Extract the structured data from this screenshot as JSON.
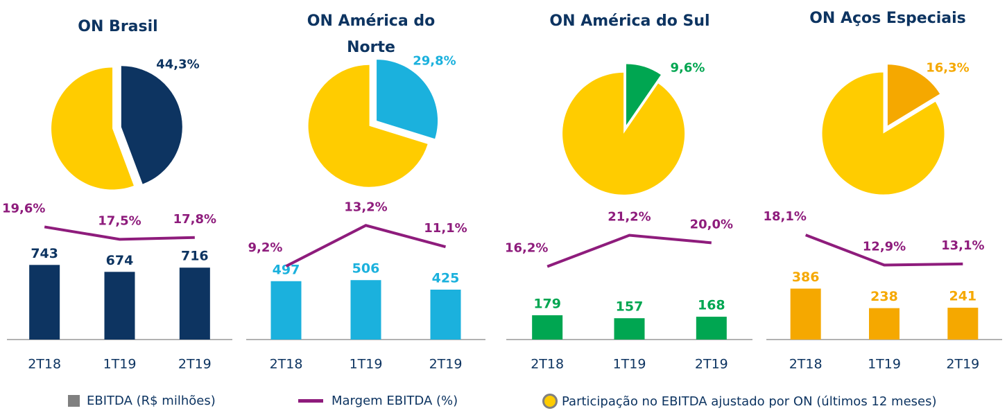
{
  "chart_data": [
    {
      "type": "pie",
      "title": "ON Brasil",
      "rest_color": "#ffcc00",
      "series": [
        {
          "name": "Participação no EBITDA ajustado por ON (últimos 12 meses)",
          "color": "#0d3461",
          "values": [
            44.3
          ],
          "value_labels": [
            "44,3%"
          ]
        }
      ]
    },
    {
      "type": "bar_line",
      "categories": [
        "2T18",
        "1T19",
        "2T19"
      ],
      "ylim": [
        0,
        1380
      ],
      "y2lim": [
        0.5,
        24
      ],
      "series": [
        {
          "name": "EBITDA (R$ milhões)",
          "color": "#0d3461",
          "values": [
            743,
            674,
            716
          ]
        },
        {
          "name": "Margem EBITDA (%)",
          "color": "#8e1c7c",
          "axis": "y2",
          "values": [
            19.6,
            17.5,
            17.8
          ],
          "value_labels": [
            "19,6%",
            "17,5%",
            "17,8%"
          ]
        }
      ]
    },
    {
      "type": "pie",
      "title": "ON América do Norte",
      "rest_color": "#ffcc00",
      "series": [
        {
          "name": "Participação no EBITDA ajustado por ON (últimos 12 meses)",
          "color": "#1bb1dd",
          "values": [
            29.8
          ],
          "value_labels": [
            "29,8%"
          ]
        }
      ]
    },
    {
      "type": "bar_line",
      "categories": [
        "2T18",
        "1T19",
        "2T19"
      ],
      "ylim": [
        0,
        1180
      ],
      "y2lim": [
        2,
        15.6
      ],
      "series": [
        {
          "name": "EBITDA (R$ milhões)",
          "color": "#1bb1dd",
          "values": [
            497,
            506,
            425
          ]
        },
        {
          "name": "Margem EBITDA (%)",
          "color": "#8e1c7c",
          "axis": "y2",
          "values": [
            9.2,
            13.2,
            11.1
          ],
          "value_labels": [
            "9,2%",
            "13,2%",
            "11,1%"
          ]
        }
      ]
    },
    {
      "type": "pie",
      "title": "ON América do Sul",
      "rest_color": "#ffcc00",
      "series": [
        {
          "name": "Participação no EBITDA ajustado por ON (últimos 12 meses)",
          "color": "#00a651",
          "values": [
            9.6
          ],
          "value_labels": [
            "9,6%"
          ]
        }
      ]
    },
    {
      "type": "bar_line",
      "categories": [
        "2T18",
        "1T19",
        "2T19"
      ],
      "ylim": [
        0,
        1020
      ],
      "y2lim": [
        4.5,
        26.7
      ],
      "series": [
        {
          "name": "EBITDA (R$ milhões)",
          "color": "#00a651",
          "values": [
            179,
            157,
            168
          ]
        },
        {
          "name": "Margem EBITDA (%)",
          "color": "#8e1c7c",
          "axis": "y2",
          "values": [
            16.2,
            21.2,
            20.0
          ],
          "value_labels": [
            "16,2%",
            "21,2%",
            "20,0%"
          ]
        }
      ]
    },
    {
      "type": "pie",
      "title": "ON Aços Especiais",
      "rest_color": "#ffcc00",
      "series": [
        {
          "name": "Participação no EBITDA ajustado por ON (últimos 12 meses)",
          "color": "#f5a800",
          "values": [
            16.3
          ],
          "value_labels": [
            "16,3%"
          ]
        }
      ]
    },
    {
      "type": "bar_line",
      "categories": [
        "2T18",
        "1T19",
        "2T19"
      ],
      "ylim": [
        0,
        1050
      ],
      "y2lim": [
        0,
        24
      ],
      "series": [
        {
          "name": "EBITDA (R$ milhões)",
          "color": "#f5a800",
          "values": [
            386,
            238,
            241
          ]
        },
        {
          "name": "Margem EBITDA (%)",
          "color": "#8e1c7c",
          "axis": "y2",
          "values": [
            18.1,
            12.9,
            13.1
          ],
          "value_labels": [
            "18,1%",
            "12,9%",
            "13,1%"
          ]
        }
      ]
    }
  ]
}
